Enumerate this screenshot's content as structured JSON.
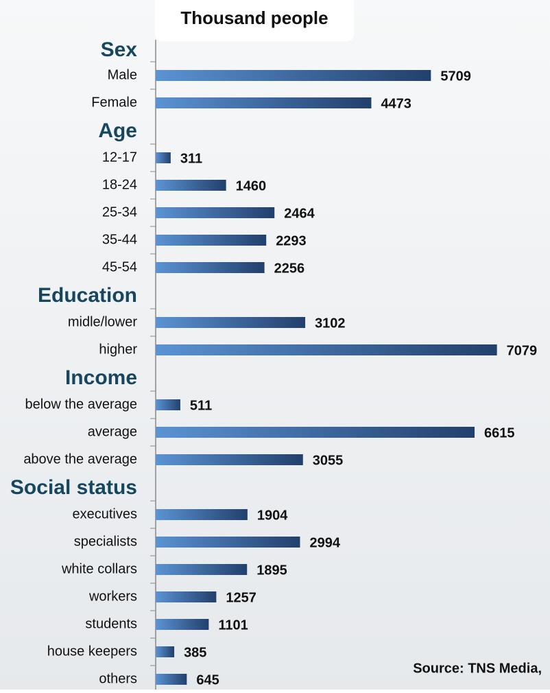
{
  "chart_data": {
    "type": "bar",
    "title": "Thousand people",
    "source": "Source: TNS Media,",
    "color": "#2b4f80",
    "groups": [
      {
        "name": "Sex",
        "categories": [
          "Male",
          "Female"
        ],
        "values": [
          5709,
          4473
        ]
      },
      {
        "name": "Age",
        "categories": [
          "12-17",
          "18-24",
          "25-34",
          "35-44",
          "45-54"
        ],
        "values": [
          311,
          1460,
          2464,
          2293,
          2256
        ]
      },
      {
        "name": "Education",
        "categories": [
          "midle/lower",
          "higher"
        ],
        "values": [
          3102,
          7079
        ]
      },
      {
        "name": "Income",
        "categories": [
          "below the average",
          "average",
          "above the average"
        ],
        "values": [
          511,
          6615,
          3055
        ]
      },
      {
        "name": "Social status",
        "categories": [
          "executives",
          "specialists",
          "white collars",
          "workers",
          "students",
          "house keepers",
          "others"
        ],
        "values": [
          1904,
          2994,
          1895,
          1257,
          1101,
          385,
          645
        ]
      }
    ]
  }
}
